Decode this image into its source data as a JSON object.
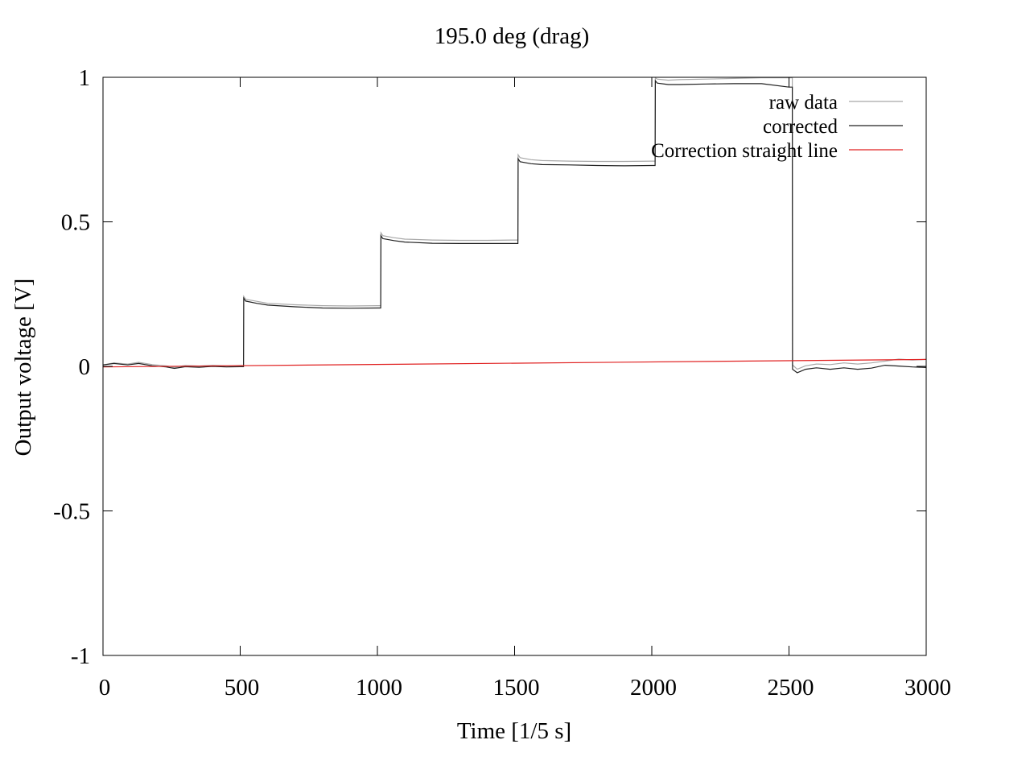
{
  "chart_data": {
    "type": "line",
    "title": "195.0 deg (drag)",
    "xlabel": "Time [1/5 s]",
    "ylabel": "Output voltage [V]",
    "xlim": [
      0,
      3000
    ],
    "ylim": [
      -1,
      1
    ],
    "xticks": [
      0,
      500,
      1000,
      1500,
      2000,
      2500,
      3000
    ],
    "xtick_labels": [
      "0",
      "500",
      "1000",
      "1500",
      "2000",
      "2500",
      "3000"
    ],
    "yticks": [
      -1,
      -0.5,
      0,
      0.5,
      1
    ],
    "ytick_labels": [
      "-1",
      "-0.5",
      "0",
      "0.5",
      "1"
    ],
    "grid": false,
    "legend_position": "top-right",
    "series": [
      {
        "name": "raw data",
        "color": "#a8a8a8",
        "x": [
          0,
          40,
          90,
          130,
          180,
          230,
          260,
          300,
          350,
          400,
          450,
          500,
          512,
          513,
          520,
          560,
          600,
          700,
          800,
          900,
          1000,
          1012,
          1013,
          1020,
          1060,
          1100,
          1200,
          1300,
          1400,
          1500,
          1512,
          1513,
          1520,
          1560,
          1600,
          1700,
          1800,
          1900,
          2000,
          2012,
          2013,
          2020,
          2060,
          2100,
          2200,
          2300,
          2400,
          2500,
          2512,
          2513,
          2530,
          2560,
          2600,
          2650,
          2700,
          2750,
          2800,
          2850,
          2900,
          2950,
          3000
        ],
        "y": [
          0.005,
          0.012,
          0.008,
          0.014,
          0.006,
          0.002,
          -0.003,
          0.003,
          0.001,
          0.004,
          0.002,
          0.003,
          0.003,
          0.242,
          0.232,
          0.225,
          0.218,
          0.213,
          0.21,
          0.209,
          0.21,
          0.21,
          0.462,
          0.452,
          0.445,
          0.44,
          0.437,
          0.436,
          0.436,
          0.437,
          0.437,
          0.732,
          0.722,
          0.715,
          0.712,
          0.71,
          0.709,
          0.709,
          0.71,
          0.71,
          0.998,
          0.994,
          0.99,
          0.992,
          0.994,
          0.996,
          0.998,
          0.998,
          0.998,
          0.005,
          -0.01,
          0.002,
          0.008,
          0.006,
          0.012,
          0.008,
          0.012,
          0.018,
          0.025,
          0.022,
          0.024
        ]
      },
      {
        "name": "corrected",
        "color": "#202020",
        "x": [
          0,
          40,
          90,
          130,
          180,
          230,
          260,
          300,
          350,
          400,
          450,
          500,
          512,
          513,
          520,
          560,
          600,
          700,
          800,
          900,
          1000,
          1012,
          1013,
          1020,
          1060,
          1100,
          1200,
          1300,
          1400,
          1500,
          1512,
          1513,
          1520,
          1560,
          1600,
          1700,
          1800,
          1900,
          2000,
          2012,
          2013,
          2020,
          2060,
          2100,
          2200,
          2300,
          2400,
          2500,
          2512,
          2513,
          2530,
          2560,
          2600,
          2650,
          2700,
          2750,
          2800,
          2850,
          2900,
          2950,
          3000
        ],
        "y": [
          0.005,
          0.01,
          0.005,
          0.01,
          0.002,
          -0.002,
          -0.007,
          -0.001,
          -0.003,
          0.0,
          -0.002,
          -0.001,
          -0.001,
          0.236,
          0.226,
          0.218,
          0.212,
          0.206,
          0.202,
          0.201,
          0.202,
          0.202,
          0.452,
          0.442,
          0.435,
          0.43,
          0.426,
          0.425,
          0.425,
          0.425,
          0.425,
          0.718,
          0.708,
          0.701,
          0.698,
          0.697,
          0.695,
          0.694,
          0.695,
          0.695,
          0.988,
          0.98,
          0.975,
          0.975,
          0.977,
          0.978,
          0.978,
          0.966,
          0.966,
          -0.01,
          -0.022,
          -0.01,
          -0.005,
          -0.01,
          -0.005,
          -0.01,
          -0.006,
          0.004,
          0.001,
          -0.002,
          -0.004
        ]
      },
      {
        "name": "Correction straight line",
        "color": "#e02020",
        "x": [
          0,
          3000
        ],
        "y": [
          -0.002,
          0.024
        ]
      }
    ]
  }
}
